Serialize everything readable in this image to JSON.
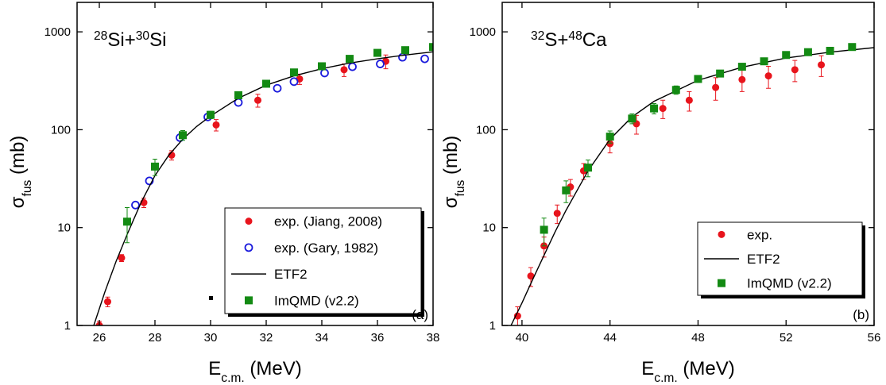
{
  "chart_data": [
    {
      "type": "scatter",
      "panel_label": "(a)",
      "title": {
        "pre": "28",
        "a": "Si+",
        "sup": "30",
        "b": "Si"
      },
      "xlabel": {
        "main": "E",
        "sub": "c.m.",
        "rest": " (MeV)"
      },
      "ylabel": {
        "main": "σ",
        "sub": "fus",
        "rest": " (mb)"
      },
      "xlim": [
        25.2,
        38
      ],
      "xticks": [
        26,
        28,
        30,
        32,
        34,
        36,
        38
      ],
      "ylim": [
        1,
        2000
      ],
      "yticks": [
        1,
        10,
        100,
        1000
      ],
      "yscale": "log",
      "series": [
        {
          "name": "exp. (Jiang, 2008)",
          "marker": "filled-circle",
          "color": "#e8141c",
          "x": [
            26.0,
            26.3,
            26.8,
            27.6,
            28.6,
            30.2,
            31.7,
            33.2,
            34.8,
            36.3
          ],
          "values": [
            1.0,
            1.75,
            4.9,
            18,
            55,
            112,
            200,
            330,
            410,
            500
          ],
          "errors": [
            0.1,
            0.2,
            0.4,
            2,
            6,
            15,
            30,
            40,
            60,
            80
          ]
        },
        {
          "name": "exp. (Gary, 1982)",
          "marker": "open-circle",
          "color": "#1a1adc",
          "x": [
            27.3,
            27.8,
            28.9,
            29.9,
            31.0,
            32.4,
            33.0,
            34.1,
            35.1,
            36.1,
            36.9,
            37.7
          ],
          "values": [
            17,
            30,
            83,
            135,
            190,
            265,
            310,
            380,
            440,
            470,
            550,
            530
          ]
        },
        {
          "name": "ETF2",
          "marker": "line",
          "color": "#000000",
          "x": [
            25.8,
            26.2,
            26.6,
            27.0,
            27.5,
            28.0,
            28.5,
            29.0,
            29.5,
            30.0,
            31.0,
            32.0,
            33.0,
            34.0,
            35.0,
            36.0,
            37.0,
            38.0
          ],
          "values": [
            1,
            2.2,
            4.5,
            8.5,
            18,
            34,
            55,
            80,
            108,
            138,
            210,
            285,
            355,
            420,
            480,
            530,
            580,
            625
          ]
        },
        {
          "name": "ImQMD (v2.2)",
          "marker": "square",
          "color": "#138a13",
          "x": [
            27.0,
            28.0,
            29.0,
            30.0,
            31.0,
            32.0,
            33.0,
            34.0,
            35.0,
            36.0,
            37.0,
            38.0
          ],
          "values": [
            11.5,
            42,
            88,
            142,
            225,
            295,
            385,
            445,
            530,
            610,
            650,
            700
          ],
          "errors": [
            4.5,
            8,
            10,
            12,
            15,
            null,
            null,
            null,
            null,
            null,
            null,
            null
          ]
        }
      ]
    },
    {
      "type": "scatter",
      "panel_label": "(b)",
      "title": {
        "pre": "32",
        "a": "S+",
        "sup": "48",
        "b": "Ca"
      },
      "xlabel": {
        "main": "E",
        "sub": "c.m.",
        "rest": " (MeV)"
      },
      "ylabel": {
        "main": "σ",
        "sub": "fus",
        "rest": " (mb)"
      },
      "xlim": [
        39.1,
        56
      ],
      "xticks": [
        40,
        44,
        48,
        52,
        56
      ],
      "ylim": [
        1,
        2000
      ],
      "yticks": [
        1,
        10,
        100,
        1000
      ],
      "yscale": "log",
      "series": [
        {
          "name": "exp.",
          "marker": "filled-circle",
          "color": "#e8141c",
          "x": [
            39.8,
            40.4,
            41.0,
            41.6,
            42.2,
            42.8,
            44.0,
            45.2,
            46.4,
            47.6,
            48.8,
            50.0,
            51.2,
            52.4,
            53.6
          ],
          "values": [
            1.25,
            3.2,
            6.5,
            14,
            26,
            38,
            72,
            115,
            165,
            200,
            270,
            325,
            355,
            410,
            460
          ],
          "errors": [
            0.3,
            0.7,
            1.5,
            3,
            5,
            7,
            14,
            25,
            35,
            45,
            70,
            80,
            90,
            100,
            110
          ]
        },
        {
          "name": "ETF2",
          "marker": "line",
          "color": "#000000",
          "x": [
            39.5,
            40.0,
            40.5,
            41.0,
            41.5,
            42.0,
            43.0,
            44.0,
            45.0,
            46.0,
            48.0,
            50.0,
            52.0,
            54.0,
            56.0
          ],
          "values": [
            1,
            1.7,
            3,
            5.2,
            9,
            15,
            38,
            80,
            135,
            195,
            320,
            435,
            540,
            620,
            690
          ]
        },
        {
          "name": "ImQMD (v2.2)",
          "marker": "square",
          "color": "#138a13",
          "x": [
            41,
            42,
            43,
            44,
            45,
            46,
            47,
            48,
            49,
            50,
            51,
            52,
            53,
            54,
            55
          ],
          "values": [
            9.5,
            24,
            41,
            85,
            130,
            165,
            255,
            330,
            375,
            440,
            500,
            580,
            620,
            640,
            700
          ],
          "errors": [
            3,
            6,
            8,
            12,
            15,
            20,
            25,
            null,
            null,
            null,
            null,
            null,
            null,
            null,
            null
          ]
        }
      ]
    }
  ]
}
